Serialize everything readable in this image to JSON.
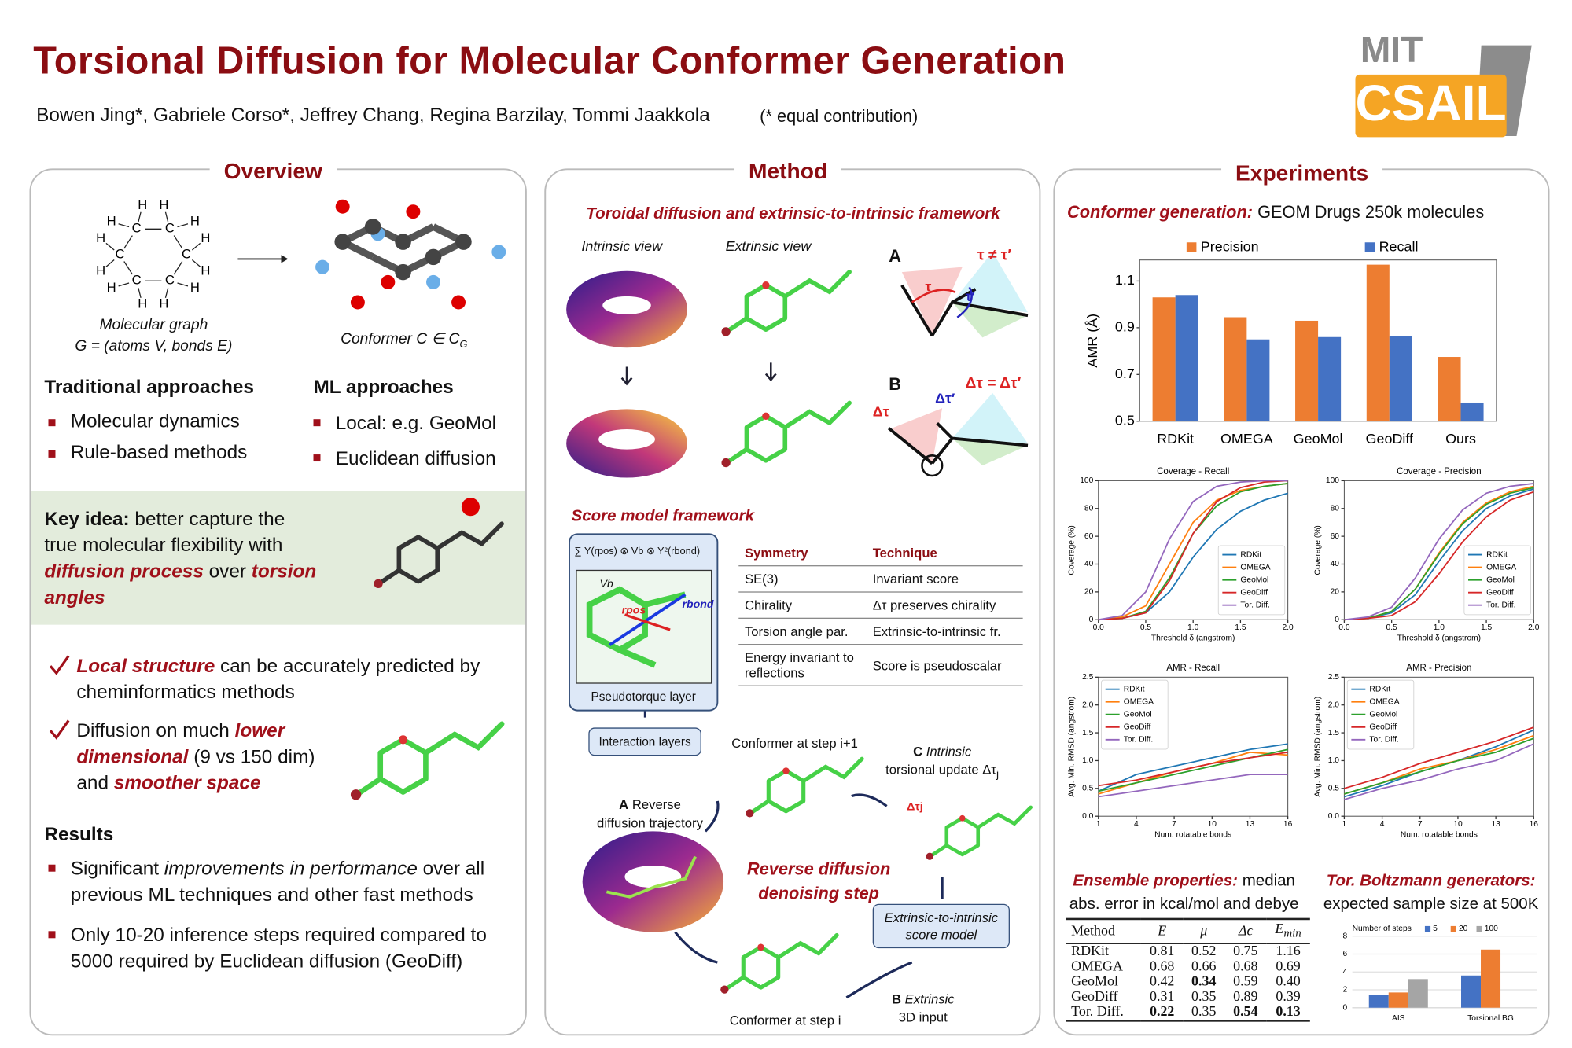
{
  "header": {
    "title": "Torsional Diffusion for Molecular Conformer Generation",
    "authors": "Bowen Jing*, Gabriele Corso*, Jeffrey Chang, Regina Barzilay, Tommi Jaakkola",
    "note": "(* equal contribution)",
    "logo": [
      "MIT",
      "CSAIL"
    ]
  },
  "overview": {
    "heading": "Overview",
    "atoms": [
      "H",
      "C"
    ],
    "graph_caption": [
      "Molecular graph",
      "G = (atoms V, bonds E)"
    ],
    "conformer_caption": {
      "text": "Conformer  C ∈ C",
      "sub": "G"
    },
    "traditional": {
      "title": "Traditional approaches",
      "items": [
        "Molecular dynamics",
        "Rule-based methods"
      ]
    },
    "ml": {
      "title": "ML approaches",
      "items": [
        "Local: e.g. GeoMol",
        "Euclidean diffusion"
      ]
    },
    "key_idea": [
      {
        "text": "Key idea:",
        "style": "bold"
      },
      {
        "text": " better capture the true molecular flexibility with "
      },
      {
        "text": "diffusion process",
        "style": "red"
      },
      {
        "text": " over "
      },
      {
        "text": "torsion angles",
        "style": "red"
      }
    ],
    "checks": [
      [
        {
          "text": "Local structure",
          "style": "red"
        },
        {
          "text": " can be accurately predicted by cheminformatics methods"
        }
      ],
      [
        {
          "text": "Diffusion on much "
        },
        {
          "text": "lower dimensional",
          "style": "red"
        },
        {
          "text": " (9 vs 150 dim) and "
        },
        {
          "text": "smoother space",
          "style": "red"
        }
      ]
    ],
    "results": {
      "title": "Results",
      "items": [
        [
          {
            "text": "Significant "
          },
          {
            "text": "improvements in performance",
            "style": "italic"
          },
          {
            "text": " over all previous ML techniques and other fast methods"
          }
        ],
        [
          {
            "text": "Only 10-20 inference steps required compared to 5000 required by Euclidean diffusion (GeoDiff)"
          }
        ]
      ]
    }
  },
  "method": {
    "heading": "Method",
    "toroidal_title": "Toroidal diffusion and extrinsic-to-intrinsic framework",
    "intrinsic_view": "Intrinsic view",
    "extrinsic_view": "Extrinsic view",
    "panel_a": {
      "letter": "A",
      "relation": "τ ≠ τ′",
      "tau": "τ",
      "tau_prime": "τ′"
    },
    "panel_b": {
      "letter": "B",
      "relation": "Δτ = Δτ′",
      "dtau": "Δτ",
      "dtau_prime": "Δτ′"
    },
    "score_title": "Score model framework",
    "formula": "∑ Y(rpos) ⊗ Vb ⊗ Y²(rbond)",
    "inset_labels": [
      "Vb",
      "rpos",
      "rbond"
    ],
    "pseudotorque": "Pseudotorque layer",
    "interaction": "Interaction layers",
    "table": {
      "header": [
        "Symmetry",
        "Technique"
      ],
      "rows": [
        [
          "SE(3)",
          "Invariant score"
        ],
        [
          "Chirality",
          "Δτ preserves chirality"
        ],
        [
          "Torsion angle par.",
          "Extrinsic-to-intrinsic fr."
        ],
        [
          "Energy invariant to reflections",
          "Score is pseudoscalar"
        ]
      ]
    },
    "step_next": "Conformer at step i+1",
    "update": {
      "letter": "C",
      "text": "Intrinsic",
      "text2": "torsional update Δτ",
      "sub": "j",
      "mark": "Δτj"
    },
    "trajectory": {
      "letter": "A",
      "text": "Reverse",
      "text2": "diffusion trajectory"
    },
    "denoising": "Reverse diffusion denoising step",
    "score_model": "Extrinsic-to-intrinsic score model",
    "step_i": "Conformer at step i",
    "input": {
      "letter": "B",
      "text": "Extrinsic",
      "text2": "3D input"
    }
  },
  "experiments": {
    "heading": "Experiments",
    "subtitle": [
      {
        "text": "Conformer generation:",
        "style": "red"
      },
      {
        "text": " GEOM Drugs 250k molecules"
      }
    ],
    "amr_bar": {
      "type": "bar",
      "ylabel": "AMR (Å)",
      "categories": [
        "RDKit",
        "OMEGA",
        "GeoMol",
        "GeoDiff",
        "Ours"
      ],
      "series": [
        {
          "name": "Precision",
          "color": "#ed7d31",
          "values": [
            1.03,
            0.945,
            0.93,
            1.17,
            0.775
          ]
        },
        {
          "name": "Recall",
          "color": "#4472c4",
          "values": [
            1.04,
            0.85,
            0.86,
            0.865,
            0.58
          ]
        }
      ],
      "ylim": [
        0.5,
        1.19
      ],
      "yticks": [
        0.5,
        0.7,
        0.9,
        1.1
      ],
      "grid": false,
      "frame": true,
      "legend": "top"
    },
    "coverage_recall": {
      "type": "line",
      "title": "Coverage - Recall",
      "xlabel": "Threshold δ (angstrom)",
      "ylabel": "Coverage (%)",
      "x": [
        0,
        0.25,
        0.5,
        0.75,
        1,
        1.25,
        1.5,
        1.75,
        2
      ],
      "xlim": [
        0,
        2
      ],
      "ylim": [
        0,
        100
      ],
      "xticks": [
        {
          "value": 0,
          "label": "0.0"
        },
        0.5,
        {
          "value": 1,
          "label": "1.0"
        },
        1.5,
        {
          "value": 2,
          "label": "2.0"
        }
      ],
      "yticks": [
        0,
        20,
        40,
        60,
        80,
        100
      ],
      "frame": true,
      "grid": false,
      "legend": "lower right",
      "series": [
        {
          "name": "RDKit",
          "color": "#1f77b4",
          "values": [
            0,
            1,
            5,
            20,
            45,
            65,
            78,
            86,
            91
          ]
        },
        {
          "name": "OMEGA",
          "color": "#ff7f0e",
          "values": [
            0,
            2,
            10,
            40,
            70,
            86,
            93,
            96,
            98
          ]
        },
        {
          "name": "GeoMol",
          "color": "#2ca02c",
          "values": [
            0,
            1,
            6,
            30,
            62,
            82,
            92,
            96,
            98
          ]
        },
        {
          "name": "GeoDiff",
          "color": "#d62728",
          "values": [
            0,
            1,
            5,
            28,
            62,
            85,
            95,
            99,
            100
          ]
        },
        {
          "name": "Tor. Diff.",
          "color": "#9467bd",
          "values": [
            0,
            3,
            20,
            58,
            85,
            96,
            99,
            100,
            100
          ]
        }
      ]
    },
    "coverage_precision": {
      "type": "line",
      "title": "Coverage - Precision",
      "xlabel": "Threshold δ (angstrom)",
      "ylabel": "Coverage (%)",
      "x": [
        0,
        0.25,
        0.5,
        0.75,
        1,
        1.25,
        1.5,
        1.75,
        2
      ],
      "xlim": [
        0,
        2
      ],
      "ylim": [
        0,
        100
      ],
      "xticks": [
        {
          "value": 0,
          "label": "0.0"
        },
        0.5,
        {
          "value": 1,
          "label": "1.0"
        },
        1.5,
        {
          "value": 2,
          "label": "2.0"
        }
      ],
      "yticks": [
        0,
        20,
        40,
        60,
        80,
        100
      ],
      "frame": true,
      "grid": false,
      "legend": "lower right",
      "series": [
        {
          "name": "RDKit",
          "color": "#1f77b4",
          "values": [
            0,
            1,
            5,
            18,
            42,
            64,
            80,
            89,
            94
          ]
        },
        {
          "name": "OMEGA",
          "color": "#ff7f0e",
          "values": [
            0,
            1,
            6,
            22,
            48,
            70,
            84,
            92,
            96
          ]
        },
        {
          "name": "GeoMol",
          "color": "#2ca02c",
          "values": [
            0,
            1,
            6,
            22,
            47,
            69,
            83,
            91,
            95
          ]
        },
        {
          "name": "GeoDiff",
          "color": "#d62728",
          "values": [
            0,
            1,
            3,
            13,
            33,
            56,
            74,
            86,
            92
          ]
        },
        {
          "name": "Tor. Diff.",
          "color": "#9467bd",
          "values": [
            0,
            2,
            9,
            30,
            58,
            79,
            91,
            96,
            98
          ]
        }
      ]
    },
    "amr_recall": {
      "type": "line",
      "title": "AMR - Recall",
      "xlabel": "Num. rotatable bonds",
      "ylabel": "Avg. Min. RMSD (angstrom)",
      "x": [
        1,
        4,
        7,
        10,
        13,
        16
      ],
      "xlim": [
        1,
        16
      ],
      "ylim": [
        0,
        2.5
      ],
      "xticks": [
        1,
        4,
        7,
        10,
        13,
        16
      ],
      "yticks": [
        {
          "value": 0,
          "label": "0.0"
        },
        0.5,
        {
          "value": 1,
          "label": "1.0"
        },
        1.5,
        {
          "value": 2,
          "label": "2.0"
        },
        2.5
      ],
      "frame": true,
      "grid": false,
      "legend": "upper left",
      "series": [
        {
          "name": "RDKit",
          "color": "#1f77b4",
          "values": [
            0.45,
            0.75,
            0.9,
            1.05,
            1.2,
            1.3
          ]
        },
        {
          "name": "OMEGA",
          "color": "#ff7f0e",
          "values": [
            0.4,
            0.6,
            0.8,
            0.95,
            1.15,
            1.1
          ]
        },
        {
          "name": "GeoMol",
          "color": "#2ca02c",
          "values": [
            0.45,
            0.6,
            0.75,
            0.9,
            1.05,
            1.2
          ]
        },
        {
          "name": "GeoDiff",
          "color": "#d62728",
          "values": [
            0.55,
            0.65,
            0.8,
            0.95,
            1.05,
            1.15
          ]
        },
        {
          "name": "Tor. Diff.",
          "color": "#9467bd",
          "values": [
            0.35,
            0.45,
            0.55,
            0.65,
            0.75,
            0.75
          ]
        }
      ]
    },
    "amr_precision": {
      "type": "line",
      "title": "AMR - Precision",
      "xlabel": "Num. rotatable bonds",
      "ylabel": "Avg. Min. RMSD (angstrom)",
      "x": [
        1,
        4,
        7,
        10,
        13,
        16
      ],
      "xlim": [
        1,
        16
      ],
      "ylim": [
        0,
        2.5
      ],
      "xticks": [
        1,
        4,
        7,
        10,
        13,
        16
      ],
      "yticks": [
        {
          "value": 0,
          "label": "0.0"
        },
        0.5,
        {
          "value": 1,
          "label": "1.0"
        },
        1.5,
        {
          "value": 2,
          "label": "2.0"
        },
        2.5
      ],
      "frame": true,
      "grid": false,
      "legend": "upper left",
      "series": [
        {
          "name": "RDKit",
          "color": "#1f77b4",
          "values": [
            0.35,
            0.55,
            0.8,
            1.0,
            1.25,
            1.55
          ]
        },
        {
          "name": "OMEGA",
          "color": "#ff7f0e",
          "values": [
            0.4,
            0.6,
            0.85,
            1.0,
            1.2,
            1.45
          ]
        },
        {
          "name": "GeoMol",
          "color": "#2ca02c",
          "values": [
            0.4,
            0.6,
            0.8,
            1.0,
            1.15,
            1.4
          ]
        },
        {
          "name": "GeoDiff",
          "color": "#d62728",
          "values": [
            0.5,
            0.7,
            0.95,
            1.15,
            1.35,
            1.6
          ]
        },
        {
          "name": "Tor. Diff.",
          "color": "#9467bd",
          "values": [
            0.3,
            0.5,
            0.65,
            0.85,
            1.0,
            1.3
          ]
        }
      ]
    },
    "ensemble": {
      "title": [
        {
          "text": "Ensemble properties:",
          "style": "red"
        },
        {
          "text": " median abs. error in kcal/mol and debye"
        }
      ],
      "table": {
        "header": [
          {
            "text": "Method"
          },
          {
            "text": "E"
          },
          {
            "text": "μ"
          },
          {
            "text": "Δϵ"
          },
          {
            "text": "E",
            "sub": "min"
          }
        ],
        "rows": [
          {
            "method": "RDKit",
            "values": [
              "0.81",
              "0.52",
              "0.75",
              "1.16"
            ],
            "bold": []
          },
          {
            "method": "OMEGA",
            "values": [
              "0.68",
              "0.66",
              "0.68",
              "0.69"
            ],
            "bold": []
          },
          {
            "method": "GeoMol",
            "values": [
              "0.42",
              "0.34",
              "0.59",
              "0.40"
            ],
            "bold": [
              1
            ]
          },
          {
            "method": "GeoDiff",
            "values": [
              "0.31",
              "0.35",
              "0.89",
              "0.39"
            ],
            "bold": []
          },
          {
            "method": "Tor. Diff.",
            "values": [
              "0.22",
              "0.35",
              "0.54",
              "0.13"
            ],
            "bold": [
              0,
              2,
              3
            ]
          }
        ]
      }
    },
    "boltzmann": {
      "title": [
        {
          "text": "Tor. Boltzmann generators:",
          "style": "red"
        },
        {
          "text": " expected sample size at 500K"
        }
      ],
      "chart": {
        "type": "bar",
        "legend_title": "Number of steps",
        "categories": [
          "AIS",
          "Torsional BG"
        ],
        "series": [
          {
            "name": "5",
            "color": "#4472c4",
            "values": [
              1.4,
              3.6
            ]
          },
          {
            "name": "20",
            "color": "#ed7d31",
            "values": [
              1.7,
              6.5
            ]
          },
          {
            "name": "100",
            "color": "#a5a5a5",
            "values": [
              3.2,
              null
            ]
          }
        ],
        "ylim": [
          0,
          8
        ],
        "yticks": [
          0,
          2,
          4,
          6,
          8
        ],
        "grid": true,
        "frame": false,
        "legend": "top"
      }
    }
  }
}
